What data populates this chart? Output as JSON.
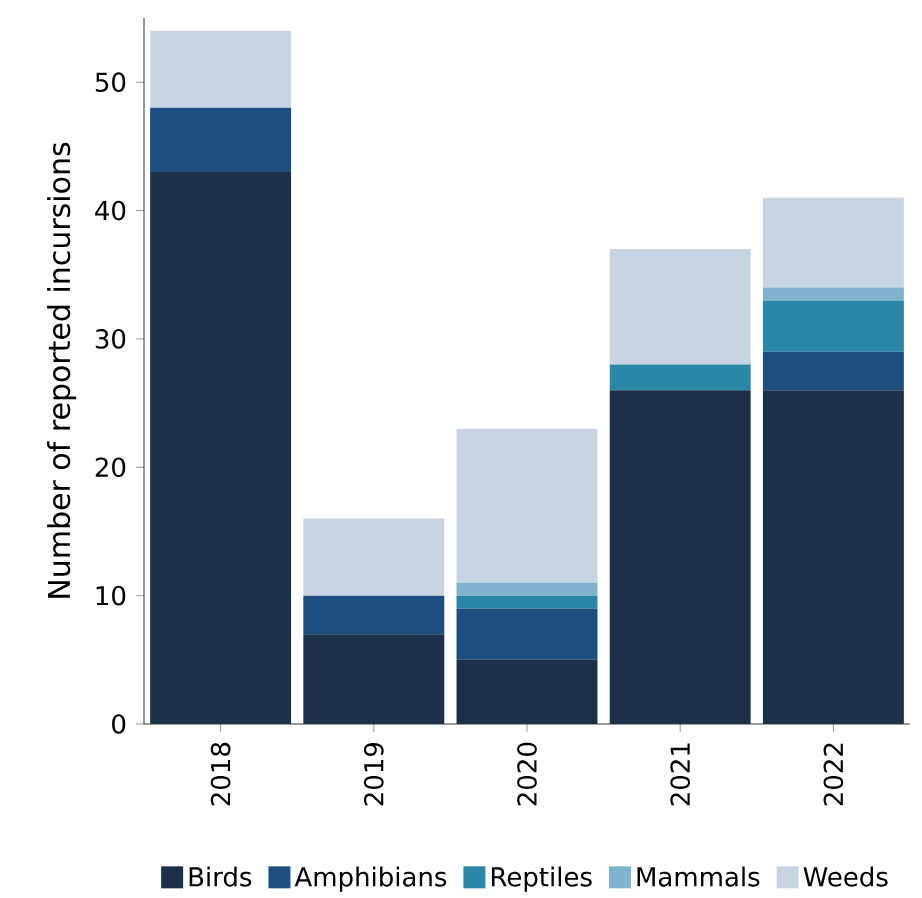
{
  "chart_data": {
    "type": "bar",
    "stacked": true,
    "ylabel": "Number of reported incursions",
    "categories": [
      "2018",
      "2019",
      "2020",
      "2021",
      "2022"
    ],
    "series": [
      {
        "name": "Birds",
        "color": "#1c3048",
        "values": [
          43,
          7,
          5,
          26,
          26
        ]
      },
      {
        "name": "Amphibians",
        "color": "#1d4e80",
        "values": [
          5,
          3,
          4,
          0,
          3
        ]
      },
      {
        "name": "Reptiles",
        "color": "#2b87a8",
        "values": [
          0,
          0,
          1,
          2,
          4
        ]
      },
      {
        "name": "Mammals",
        "color": "#7fb3cf",
        "values": [
          0,
          0,
          1,
          0,
          1
        ]
      },
      {
        "name": "Weeds",
        "color": "#c9d4e3",
        "values": [
          6,
          6,
          12,
          9,
          7
        ]
      }
    ],
    "ylim": [
      0,
      55
    ],
    "yticks": [
      0,
      10,
      20,
      30,
      40,
      50
    ],
    "grid": false,
    "legend": "bottom"
  }
}
